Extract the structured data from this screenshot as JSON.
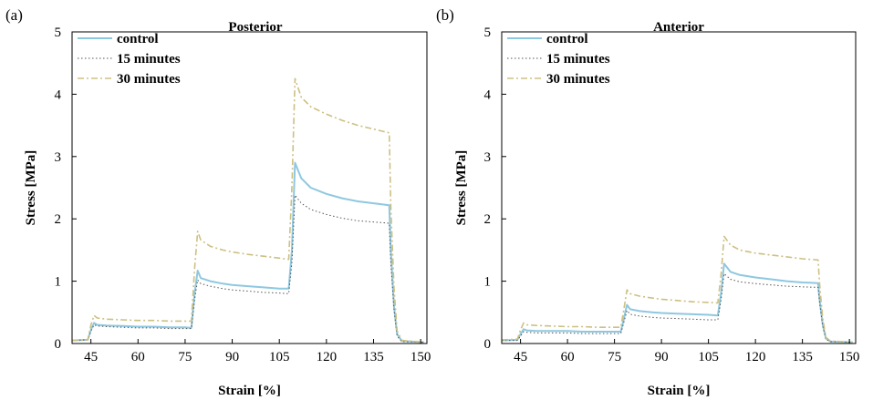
{
  "chart_data": [
    {
      "type": "line",
      "panel_label": "(a)",
      "title": "Posterior",
      "xlabel": "Strain [%]",
      "ylabel": "Stress [MPa]",
      "xlim": [
        39,
        152
      ],
      "ylim": [
        0,
        5
      ],
      "xticks": [
        45,
        60,
        75,
        90,
        105,
        120,
        135,
        150
      ],
      "yticks": [
        0,
        1,
        2,
        3,
        4,
        5
      ],
      "grid": false,
      "legend_position": "top-left",
      "series": [
        {
          "name": "control",
          "color": "#8ec8e0",
          "style": "solid",
          "points": [
            [
              39,
              0.05
            ],
            [
              44,
              0.06
            ],
            [
              45,
              0.22
            ],
            [
              46,
              0.33
            ],
            [
              47,
              0.3
            ],
            [
              50,
              0.29
            ],
            [
              55,
              0.28
            ],
            [
              60,
              0.27
            ],
            [
              65,
              0.27
            ],
            [
              70,
              0.26
            ],
            [
              75,
              0.26
            ],
            [
              77,
              0.25
            ],
            [
              78,
              0.8
            ],
            [
              79,
              1.17
            ],
            [
              80,
              1.05
            ],
            [
              83,
              1.0
            ],
            [
              87,
              0.96
            ],
            [
              90,
              0.94
            ],
            [
              95,
              0.92
            ],
            [
              100,
              0.9
            ],
            [
              105,
              0.88
            ],
            [
              108,
              0.88
            ],
            [
              109,
              1.5
            ],
            [
              110,
              2.9
            ],
            [
              112,
              2.65
            ],
            [
              115,
              2.5
            ],
            [
              120,
              2.4
            ],
            [
              125,
              2.33
            ],
            [
              130,
              2.28
            ],
            [
              135,
              2.25
            ],
            [
              140,
              2.22
            ],
            [
              140.5,
              1.5
            ],
            [
              141.5,
              0.6
            ],
            [
              142.5,
              0.15
            ],
            [
              144,
              0.04
            ],
            [
              151,
              0.02
            ]
          ]
        },
        {
          "name": "15 minutes",
          "color": "#555555",
          "style": "dotted",
          "points": [
            [
              39,
              0.05
            ],
            [
              44,
              0.06
            ],
            [
              45,
              0.2
            ],
            [
              46,
              0.3
            ],
            [
              47,
              0.28
            ],
            [
              50,
              0.27
            ],
            [
              55,
              0.26
            ],
            [
              60,
              0.25
            ],
            [
              65,
              0.25
            ],
            [
              70,
              0.24
            ],
            [
              75,
              0.24
            ],
            [
              77,
              0.24
            ],
            [
              78,
              0.7
            ],
            [
              79,
              1.02
            ],
            [
              80,
              0.96
            ],
            [
              83,
              0.92
            ],
            [
              87,
              0.88
            ],
            [
              90,
              0.86
            ],
            [
              95,
              0.84
            ],
            [
              100,
              0.82
            ],
            [
              105,
              0.81
            ],
            [
              108,
              0.8
            ],
            [
              109,
              1.3
            ],
            [
              110,
              2.38
            ],
            [
              112,
              2.25
            ],
            [
              115,
              2.15
            ],
            [
              120,
              2.07
            ],
            [
              125,
              2.01
            ],
            [
              130,
              1.97
            ],
            [
              135,
              1.95
            ],
            [
              140,
              1.93
            ],
            [
              140.5,
              1.3
            ],
            [
              141.5,
              0.55
            ],
            [
              142.5,
              0.12
            ],
            [
              144,
              0.03
            ],
            [
              151,
              0.02
            ]
          ]
        },
        {
          "name": "30 minutes",
          "color": "#cdc082",
          "style": "dashdot",
          "points": [
            [
              39,
              0.05
            ],
            [
              44,
              0.06
            ],
            [
              45,
              0.3
            ],
            [
              46,
              0.45
            ],
            [
              47,
              0.41
            ],
            [
              50,
              0.39
            ],
            [
              55,
              0.38
            ],
            [
              60,
              0.37
            ],
            [
              65,
              0.37
            ],
            [
              70,
              0.36
            ],
            [
              75,
              0.36
            ],
            [
              77,
              0.36
            ],
            [
              78,
              1.2
            ],
            [
              79,
              1.8
            ],
            [
              80,
              1.66
            ],
            [
              83,
              1.56
            ],
            [
              87,
              1.5
            ],
            [
              90,
              1.47
            ],
            [
              95,
              1.43
            ],
            [
              100,
              1.4
            ],
            [
              105,
              1.37
            ],
            [
              108,
              1.35
            ],
            [
              109,
              2.5
            ],
            [
              110,
              4.25
            ],
            [
              112,
              3.95
            ],
            [
              115,
              3.8
            ],
            [
              120,
              3.68
            ],
            [
              125,
              3.58
            ],
            [
              130,
              3.5
            ],
            [
              135,
              3.44
            ],
            [
              140,
              3.38
            ],
            [
              140.5,
              2.2
            ],
            [
              141.5,
              0.9
            ],
            [
              142.5,
              0.2
            ],
            [
              144,
              0.05
            ],
            [
              151,
              0.02
            ]
          ]
        }
      ]
    },
    {
      "type": "line",
      "panel_label": "(b)",
      "title": "Anterior",
      "xlabel": "Strain [%]",
      "ylabel": "Stress [MPa]",
      "xlim": [
        39,
        152
      ],
      "ylim": [
        0,
        5
      ],
      "xticks": [
        45,
        60,
        75,
        90,
        105,
        120,
        135,
        150
      ],
      "yticks": [
        0,
        1,
        2,
        3,
        4,
        5
      ],
      "grid": false,
      "legend_position": "top-left",
      "series": [
        {
          "name": "control",
          "color": "#8ec8e0",
          "style": "solid",
          "points": [
            [
              39,
              0.05
            ],
            [
              44,
              0.06
            ],
            [
              45,
              0.15
            ],
            [
              46,
              0.23
            ],
            [
              47,
              0.21
            ],
            [
              50,
              0.2
            ],
            [
              55,
              0.2
            ],
            [
              60,
              0.2
            ],
            [
              65,
              0.19
            ],
            [
              70,
              0.19
            ],
            [
              75,
              0.19
            ],
            [
              77,
              0.19
            ],
            [
              78,
              0.4
            ],
            [
              79,
              0.62
            ],
            [
              80,
              0.55
            ],
            [
              83,
              0.52
            ],
            [
              87,
              0.5
            ],
            [
              90,
              0.49
            ],
            [
              95,
              0.48
            ],
            [
              100,
              0.47
            ],
            [
              105,
              0.46
            ],
            [
              108,
              0.45
            ],
            [
              109,
              0.8
            ],
            [
              110,
              1.28
            ],
            [
              112,
              1.15
            ],
            [
              115,
              1.1
            ],
            [
              120,
              1.06
            ],
            [
              125,
              1.03
            ],
            [
              130,
              1.0
            ],
            [
              135,
              0.98
            ],
            [
              140,
              0.97
            ],
            [
              140.5,
              0.7
            ],
            [
              141.5,
              0.3
            ],
            [
              142.5,
              0.08
            ],
            [
              144,
              0.03
            ],
            [
              151,
              0.02
            ]
          ]
        },
        {
          "name": "15 minutes",
          "color": "#555555",
          "style": "dotted",
          "points": [
            [
              39,
              0.05
            ],
            [
              44,
              0.05
            ],
            [
              45,
              0.12
            ],
            [
              46,
              0.19
            ],
            [
              47,
              0.18
            ],
            [
              50,
              0.17
            ],
            [
              55,
              0.17
            ],
            [
              60,
              0.17
            ],
            [
              65,
              0.16
            ],
            [
              70,
              0.16
            ],
            [
              75,
              0.16
            ],
            [
              77,
              0.16
            ],
            [
              78,
              0.34
            ],
            [
              79,
              0.53
            ],
            [
              80,
              0.47
            ],
            [
              83,
              0.44
            ],
            [
              87,
              0.42
            ],
            [
              90,
              0.41
            ],
            [
              95,
              0.4
            ],
            [
              100,
              0.39
            ],
            [
              105,
              0.38
            ],
            [
              108,
              0.38
            ],
            [
              109,
              0.7
            ],
            [
              110,
              1.12
            ],
            [
              112,
              1.03
            ],
            [
              115,
              0.99
            ],
            [
              120,
              0.96
            ],
            [
              125,
              0.94
            ],
            [
              130,
              0.92
            ],
            [
              135,
              0.91
            ],
            [
              140,
              0.9
            ],
            [
              140.5,
              0.65
            ],
            [
              141.5,
              0.28
            ],
            [
              142.5,
              0.07
            ],
            [
              144,
              0.03
            ],
            [
              151,
              0.02
            ]
          ]
        },
        {
          "name": "30 minutes",
          "color": "#cdc082",
          "style": "dashdot",
          "points": [
            [
              39,
              0.06
            ],
            [
              44,
              0.07
            ],
            [
              45,
              0.22
            ],
            [
              46,
              0.33
            ],
            [
              47,
              0.3
            ],
            [
              50,
              0.29
            ],
            [
              55,
              0.28
            ],
            [
              60,
              0.27
            ],
            [
              65,
              0.27
            ],
            [
              70,
              0.26
            ],
            [
              75,
              0.26
            ],
            [
              77,
              0.26
            ],
            [
              78,
              0.55
            ],
            [
              79,
              0.86
            ],
            [
              80,
              0.8
            ],
            [
              83,
              0.76
            ],
            [
              87,
              0.73
            ],
            [
              90,
              0.71
            ],
            [
              95,
              0.69
            ],
            [
              100,
              0.67
            ],
            [
              105,
              0.66
            ],
            [
              108,
              0.65
            ],
            [
              109,
              1.1
            ],
            [
              110,
              1.72
            ],
            [
              112,
              1.58
            ],
            [
              115,
              1.5
            ],
            [
              120,
              1.45
            ],
            [
              125,
              1.42
            ],
            [
              130,
              1.39
            ],
            [
              135,
              1.36
            ],
            [
              140,
              1.34
            ],
            [
              140.5,
              0.95
            ],
            [
              141.5,
              0.4
            ],
            [
              142.5,
              0.1
            ],
            [
              144,
              0.04
            ],
            [
              151,
              0.02
            ]
          ]
        }
      ]
    }
  ]
}
